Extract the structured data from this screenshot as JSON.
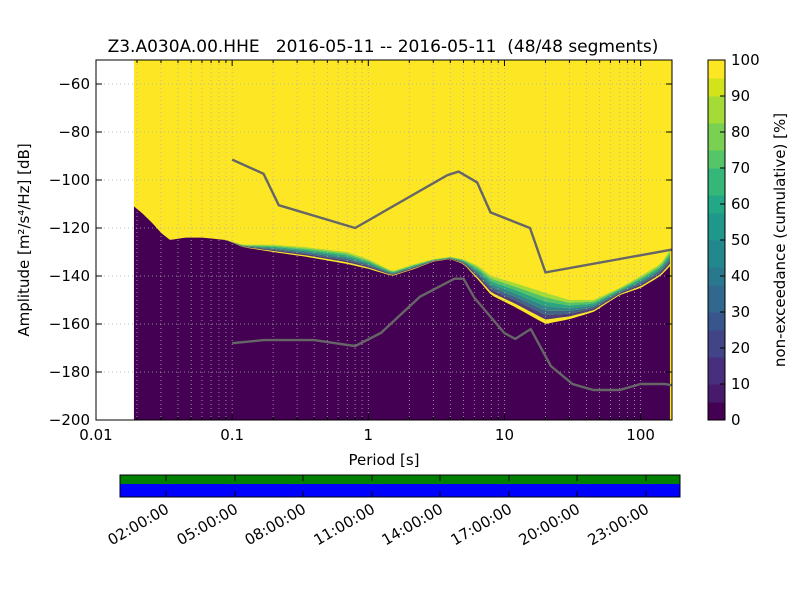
{
  "chart_data": [
    {
      "type": "heatmap",
      "title": "Z3.A030A.00.HHE   2016-05-11 -- 2016-05-11  (48/48 segments)",
      "xlabel": "Period [s]",
      "ylabel": "Amplitude [m²/s⁴/Hz] [dB]",
      "x_scale": "log",
      "xlim": [
        0.01,
        170
      ],
      "ylim": [
        -200,
        -50
      ],
      "x_ticks": [
        0.01,
        0.1,
        1,
        10,
        100
      ],
      "x_tick_labels": [
        "0.01",
        "0.1",
        "1",
        "10",
        "100"
      ],
      "y_ticks": [
        -200,
        -180,
        -160,
        -140,
        -120,
        -100,
        -80,
        -60
      ],
      "y_tick_labels": [
        "−200",
        "−180",
        "−160",
        "−140",
        "−120",
        "−100",
        "−80",
        "−60"
      ],
      "grid": true,
      "data_period_start": 0.019,
      "colorbar": {
        "label": "non-exceedance (cumulative) [%]",
        "range": [
          0,
          100
        ],
        "ticks": [
          0,
          10,
          20,
          30,
          40,
          50,
          60,
          70,
          80,
          90,
          100
        ],
        "tick_labels": [
          "0",
          "10",
          "20",
          "30",
          "40",
          "50",
          "60",
          "70",
          "80",
          "90",
          "100"
        ],
        "colormap": "viridis"
      },
      "series": [
        {
          "kind": "psd_lower_edge",
          "points": [
            [
              0.019,
              -111
            ],
            [
              0.022,
              -114
            ],
            [
              0.026,
              -118
            ],
            [
              0.03,
              -122
            ],
            [
              0.035,
              -125
            ],
            [
              0.045,
              -124
            ],
            [
              0.06,
              -124
            ],
            [
              0.09,
              -125
            ],
            [
              0.12,
              -128
            ],
            [
              0.2,
              -130
            ],
            [
              0.35,
              -132
            ],
            [
              0.7,
              -135
            ],
            [
              1.0,
              -137
            ],
            [
              1.5,
              -140
            ],
            [
              2.2,
              -137
            ],
            [
              3.0,
              -134
            ],
            [
              4.0,
              -133
            ],
            [
              5.0,
              -135
            ],
            [
              6.5,
              -142
            ],
            [
              8.0,
              -148
            ],
            [
              12.0,
              -153
            ],
            [
              20.0,
              -160
            ],
            [
              30.0,
              -158
            ],
            [
              45.0,
              -155
            ],
            [
              70.0,
              -148
            ],
            [
              100.0,
              -145
            ],
            [
              140.0,
              -140
            ],
            [
              170.0,
              -135
            ]
          ]
        },
        {
          "kind": "psd_upper_edge",
          "points": [
            [
              0.019,
              -111
            ],
            [
              0.022,
              -114
            ],
            [
              0.026,
              -118
            ],
            [
              0.03,
              -122
            ],
            [
              0.035,
              -125
            ],
            [
              0.045,
              -124
            ],
            [
              0.06,
              -124
            ],
            [
              0.09,
              -125
            ],
            [
              0.12,
              -127
            ],
            [
              0.2,
              -127
            ],
            [
              0.35,
              -128
            ],
            [
              0.7,
              -130
            ],
            [
              1.0,
              -133
            ],
            [
              1.5,
              -138
            ],
            [
              2.2,
              -135
            ],
            [
              3.0,
              -133
            ],
            [
              4.0,
              -132
            ],
            [
              5.0,
              -133
            ],
            [
              6.5,
              -136
            ],
            [
              8.0,
              -140
            ],
            [
              12.0,
              -143
            ],
            [
              20.0,
              -147
            ],
            [
              30.0,
              -150
            ],
            [
              45.0,
              -150
            ],
            [
              70.0,
              -145
            ],
            [
              100.0,
              -140
            ],
            [
              140.0,
              -135
            ],
            [
              170.0,
              -128
            ]
          ]
        },
        {
          "name": "NHNM",
          "kind": "noise_model",
          "color": "#666666",
          "points": [
            [
              0.1,
              -91.5
            ],
            [
              0.17,
              -97.4
            ],
            [
              0.22,
              -110.5
            ],
            [
              0.8,
              -120.0
            ],
            [
              3.8,
              -98.0
            ],
            [
              4.6,
              -96.5
            ],
            [
              6.3,
              -101.0
            ],
            [
              7.9,
              -113.5
            ],
            [
              15.4,
              -120.0
            ],
            [
              20.0,
              -138.5
            ],
            [
              170.0,
              -129.0
            ]
          ]
        },
        {
          "name": "NLNM",
          "kind": "noise_model",
          "color": "#666666",
          "points": [
            [
              0.1,
              -168.0
            ],
            [
              0.17,
              -166.7
            ],
            [
              0.4,
              -166.7
            ],
            [
              0.8,
              -169.2
            ],
            [
              1.24,
              -163.7
            ],
            [
              2.4,
              -148.6
            ],
            [
              4.3,
              -141.1
            ],
            [
              5.0,
              -141.1
            ],
            [
              6.0,
              -149.0
            ],
            [
              10.0,
              -163.8
            ],
            [
              12.0,
              -166.2
            ],
            [
              15.6,
              -162.1
            ],
            [
              21.9,
              -177.5
            ],
            [
              31.6,
              -185.0
            ],
            [
              45.0,
              -187.5
            ],
            [
              70.0,
              -187.5
            ],
            [
              100.0,
              -185.0
            ],
            [
              150.0,
              -185.0
            ],
            [
              170.0,
              -185.5
            ]
          ]
        }
      ]
    },
    {
      "type": "bar",
      "kind": "data_coverage_timeline",
      "x_tick_labels": [
        "02:00:00",
        "05:00:00",
        "08:00:00",
        "11:00:00",
        "14:00:00",
        "17:00:00",
        "20:00:00",
        "23:00:00"
      ],
      "series": [
        {
          "kind": "upper_band",
          "color": "#008000",
          "coverage": 1.0
        },
        {
          "kind": "lower_band",
          "color": "#0000ff",
          "coverage": 1.0
        }
      ]
    }
  ]
}
